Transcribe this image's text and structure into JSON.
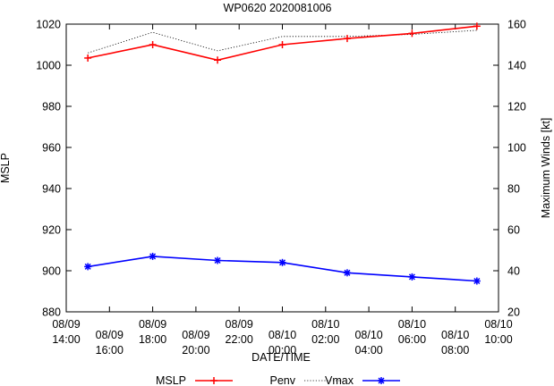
{
  "chart_data": {
    "type": "line",
    "title": "WP0620 2020081006",
    "xlabel": "DATE/TIME",
    "ylabel_left": "MSLP",
    "ylabel_right": "Maximum Winds [kt]",
    "ylim_left": [
      880,
      1020
    ],
    "ylim_right": [
      20,
      160
    ],
    "grid": false,
    "legend_position": "bottom",
    "x_ticks": [
      [
        "08/09",
        "14:00"
      ],
      [
        "08/09",
        "16:00"
      ],
      [
        "08/09",
        "18:00"
      ],
      [
        "08/09",
        "20:00"
      ],
      [
        "08/09",
        "22:00"
      ],
      [
        "08/10",
        "00:00"
      ],
      [
        "08/10",
        "02:00"
      ],
      [
        "08/10",
        "04:00"
      ],
      [
        "08/10",
        "06:00"
      ],
      [
        "08/10",
        "08:00"
      ],
      [
        "08/10",
        "10:00"
      ]
    ],
    "x_ticks_hours": [
      14,
      16,
      18,
      20,
      22,
      24,
      26,
      28,
      30,
      32,
      34
    ],
    "x_range_hours": [
      14,
      34
    ],
    "y_ticks_left": [
      880,
      900,
      920,
      940,
      960,
      980,
      1000,
      1020
    ],
    "y_ticks_right": [
      20,
      40,
      60,
      80,
      100,
      120,
      140,
      160
    ],
    "series": [
      {
        "name": "MSLP",
        "axis": "left",
        "color": "#ff0000",
        "style": "solid",
        "marker": "plus",
        "x": [
          "08/09 15:00",
          "08/09 18:00",
          "08/09 21:00",
          "08/10 00:00",
          "08/10 03:00",
          "08/10 06:00",
          "08/10 09:00"
        ],
        "x_hours": [
          15,
          18,
          21,
          24,
          27,
          30,
          33
        ],
        "values": [
          1003.5,
          1010,
          1002.5,
          1010,
          1013,
          1015.5,
          1019
        ]
      },
      {
        "name": "Penv",
        "axis": "left",
        "color": "#000000",
        "style": "dotted",
        "marker": "none",
        "x": [
          "08/09 15:00",
          "08/09 18:00",
          "08/09 21:00",
          "08/10 00:00",
          "08/10 03:00",
          "08/10 06:00",
          "08/10 09:00"
        ],
        "x_hours": [
          15,
          18,
          21,
          24,
          27,
          30,
          33
        ],
        "values": [
          1006,
          1016,
          1007,
          1014,
          1014,
          1015,
          1017
        ]
      },
      {
        "name": "Vmax",
        "axis": "right",
        "color": "#0000ff",
        "style": "solid",
        "marker": "star",
        "x": [
          "08/09 15:00",
          "08/09 18:00",
          "08/09 21:00",
          "08/10 00:00",
          "08/10 03:00",
          "08/10 06:00",
          "08/10 09:00"
        ],
        "x_hours": [
          15,
          18,
          21,
          24,
          27,
          30,
          33
        ],
        "values": [
          42,
          47,
          45,
          44,
          39,
          37,
          35
        ]
      }
    ]
  }
}
